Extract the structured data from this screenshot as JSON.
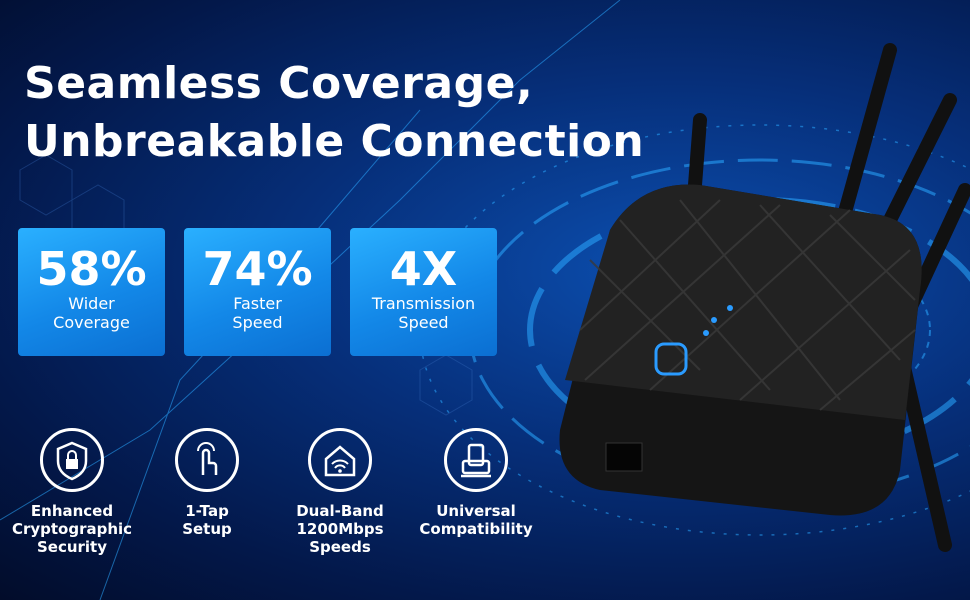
{
  "header": {
    "title": [
      "Seamless Coverage,",
      "Unbreakable Connection"
    ]
  },
  "stats": [
    {
      "value": "58%",
      "label": [
        "Wider",
        "Coverage"
      ]
    },
    {
      "value": "74%",
      "label": [
        "Faster",
        "Speed"
      ]
    },
    {
      "value": "4X",
      "label": [
        "Transmission",
        "Speed"
      ]
    }
  ],
  "features": [
    {
      "label": [
        "Enhanced",
        "Cryptographic",
        "Security"
      ]
    },
    {
      "label": [
        "1-Tap",
        "Setup"
      ]
    },
    {
      "label": [
        "Dual-Band",
        "1200Mbps",
        "Speeds"
      ]
    },
    {
      "label": [
        "Universal",
        "Compatibility"
      ]
    }
  ]
}
